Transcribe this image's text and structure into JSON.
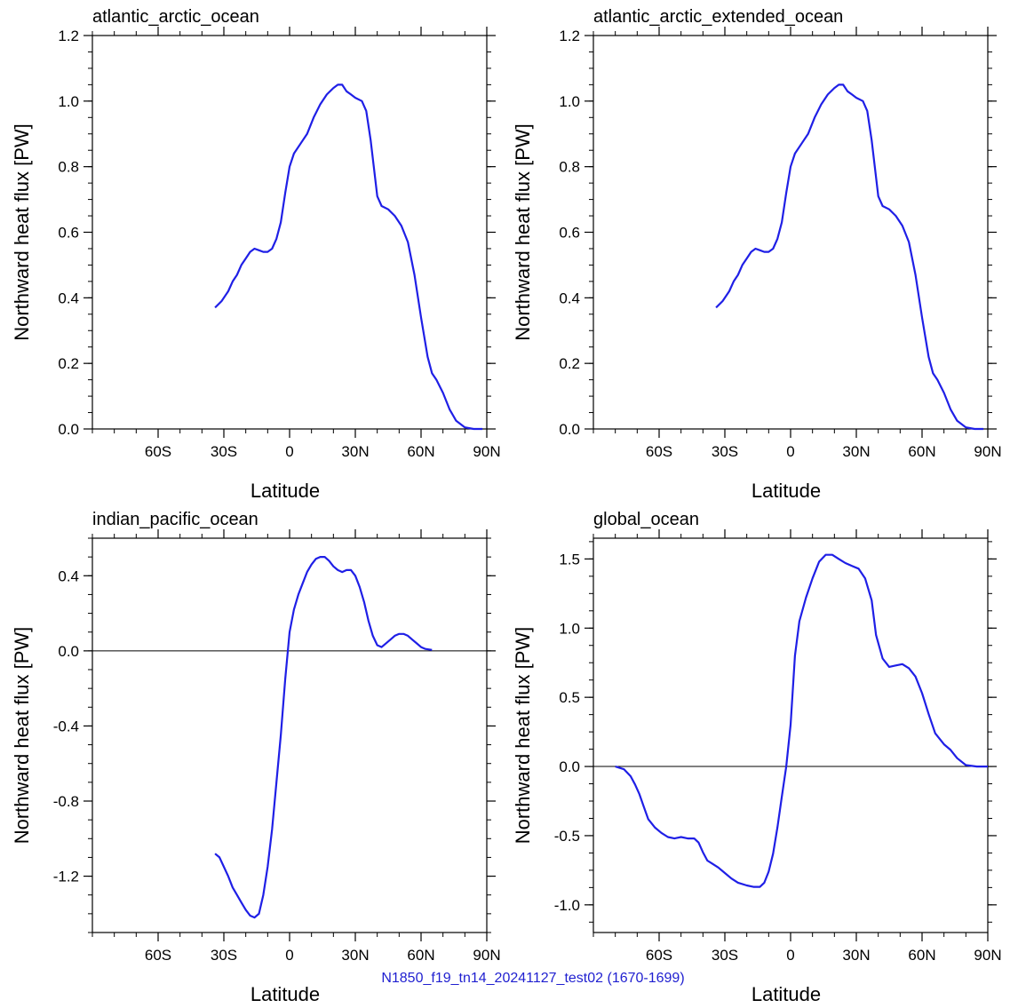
{
  "colors": {
    "series_line": "#1f1fe6",
    "zero_line": "#000000",
    "footer_text": "#1f1fd0",
    "background": "#ffffff"
  },
  "footer": {
    "label": "N1850_f19_tn14_20241127_test02 (1670-1699)"
  },
  "chart_data": [
    {
      "type": "line",
      "title": "atlantic_arctic_ocean",
      "xlabel": "Latitude",
      "ylabel": "Northward heat flux [PW]",
      "xlim": [
        -90,
        90
      ],
      "ylim": [
        0.0,
        1.2
      ],
      "x_ticks": [
        -60,
        -30,
        0,
        30,
        60,
        90
      ],
      "x_tick_labels": [
        "60S",
        "30S",
        "0",
        "30N",
        "60N",
        "90N"
      ],
      "y_ticks": [
        0.0,
        0.2,
        0.4,
        0.6,
        0.8,
        1.0,
        1.2
      ],
      "y_tick_labels": [
        "0.0",
        "0.2",
        "0.4",
        "0.6",
        "0.8",
        "1.0",
        "1.2"
      ],
      "zero_line": false,
      "series": [
        {
          "x": [
            -34,
            -31,
            -28,
            -26,
            -24,
            -22,
            -20,
            -18,
            -16,
            -14,
            -12,
            -10,
            -8,
            -6,
            -4,
            -2,
            0,
            2,
            5,
            8,
            11,
            14,
            17,
            20,
            22,
            24,
            26,
            28,
            30,
            33,
            35,
            37,
            40,
            42,
            45,
            48,
            51,
            54,
            57,
            60,
            63,
            65,
            67,
            70,
            73,
            76,
            80,
            84,
            88
          ],
          "y": [
            0.37,
            0.39,
            0.42,
            0.45,
            0.47,
            0.5,
            0.52,
            0.54,
            0.55,
            0.545,
            0.54,
            0.54,
            0.55,
            0.58,
            0.63,
            0.72,
            0.8,
            0.84,
            0.87,
            0.9,
            0.95,
            0.99,
            1.02,
            1.04,
            1.05,
            1.05,
            1.03,
            1.02,
            1.01,
            1.0,
            0.97,
            0.88,
            0.71,
            0.68,
            0.67,
            0.65,
            0.62,
            0.57,
            0.47,
            0.34,
            0.22,
            0.17,
            0.15,
            0.11,
            0.06,
            0.025,
            0.005,
            0.0,
            0.0
          ]
        }
      ]
    },
    {
      "type": "line",
      "title": "atlantic_arctic_extended_ocean",
      "xlabel": "Latitude",
      "ylabel": "Northward heat flux [PW]",
      "xlim": [
        -90,
        90
      ],
      "ylim": [
        0.0,
        1.2
      ],
      "x_ticks": [
        -60,
        -30,
        0,
        30,
        60,
        90
      ],
      "x_tick_labels": [
        "60S",
        "30S",
        "0",
        "30N",
        "60N",
        "90N"
      ],
      "y_ticks": [
        0.0,
        0.2,
        0.4,
        0.6,
        0.8,
        1.0,
        1.2
      ],
      "y_tick_labels": [
        "0.0",
        "0.2",
        "0.4",
        "0.6",
        "0.8",
        "1.0",
        "1.2"
      ],
      "zero_line": false,
      "series": [
        {
          "x": [
            -34,
            -31,
            -28,
            -26,
            -24,
            -22,
            -20,
            -18,
            -16,
            -14,
            -12,
            -10,
            -8,
            -6,
            -4,
            -2,
            0,
            2,
            5,
            8,
            11,
            14,
            17,
            20,
            22,
            24,
            26,
            28,
            30,
            33,
            35,
            37,
            40,
            42,
            45,
            48,
            51,
            54,
            57,
            60,
            63,
            65,
            67,
            70,
            73,
            76,
            80,
            84,
            88
          ],
          "y": [
            0.37,
            0.39,
            0.42,
            0.45,
            0.47,
            0.5,
            0.52,
            0.54,
            0.55,
            0.545,
            0.54,
            0.54,
            0.55,
            0.58,
            0.63,
            0.72,
            0.8,
            0.84,
            0.87,
            0.9,
            0.95,
            0.99,
            1.02,
            1.04,
            1.05,
            1.05,
            1.03,
            1.02,
            1.01,
            1.0,
            0.97,
            0.88,
            0.71,
            0.68,
            0.67,
            0.65,
            0.62,
            0.57,
            0.47,
            0.34,
            0.22,
            0.17,
            0.15,
            0.11,
            0.06,
            0.025,
            0.005,
            0.0,
            0.0
          ]
        }
      ]
    },
    {
      "type": "line",
      "title": "indian_pacific_ocean",
      "xlabel": "Latitude",
      "ylabel": "Northward heat flux [PW]",
      "xlim": [
        -90,
        90
      ],
      "ylim": [
        -1.5,
        0.6
      ],
      "x_ticks": [
        -60,
        -30,
        0,
        30,
        60,
        90
      ],
      "x_tick_labels": [
        "60S",
        "30S",
        "0",
        "30N",
        "60N",
        "90N"
      ],
      "y_ticks": [
        -1.2,
        -0.8,
        -0.4,
        0.0,
        0.4
      ],
      "y_tick_labels": [
        "-1.2",
        "-0.8",
        "-0.4",
        "0.0",
        "0.4"
      ],
      "zero_line": true,
      "series": [
        {
          "x": [
            -34,
            -32,
            -30,
            -28,
            -26,
            -24,
            -22,
            -20,
            -18,
            -16,
            -14,
            -12,
            -10,
            -8,
            -6,
            -4,
            -2,
            0,
            2,
            4,
            6,
            8,
            10,
            12,
            14,
            16,
            18,
            20,
            22,
            24,
            26,
            28,
            30,
            32,
            34,
            36,
            38,
            40,
            42,
            44,
            46,
            48,
            50,
            52,
            54,
            56,
            58,
            60,
            62,
            65
          ],
          "y": [
            -1.08,
            -1.1,
            -1.15,
            -1.2,
            -1.26,
            -1.3,
            -1.34,
            -1.38,
            -1.41,
            -1.42,
            -1.4,
            -1.3,
            -1.15,
            -0.95,
            -0.7,
            -0.45,
            -0.15,
            0.1,
            0.22,
            0.3,
            0.36,
            0.42,
            0.46,
            0.49,
            0.5,
            0.5,
            0.48,
            0.45,
            0.43,
            0.42,
            0.43,
            0.43,
            0.4,
            0.34,
            0.26,
            0.16,
            0.08,
            0.03,
            0.02,
            0.04,
            0.06,
            0.08,
            0.09,
            0.09,
            0.08,
            0.06,
            0.04,
            0.02,
            0.01,
            0.005
          ]
        }
      ]
    },
    {
      "type": "line",
      "title": "global_ocean",
      "xlabel": "Latitude",
      "ylabel": "Northward heat flux [PW]",
      "xlim": [
        -90,
        90
      ],
      "ylim": [
        -1.2,
        1.65
      ],
      "x_ticks": [
        -60,
        -30,
        0,
        30,
        60,
        90
      ],
      "x_tick_labels": [
        "60S",
        "30S",
        "0",
        "30N",
        "60N",
        "90N"
      ],
      "y_ticks": [
        -1.0,
        -0.5,
        0.0,
        0.5,
        1.0,
        1.5
      ],
      "y_tick_labels": [
        "-1.0",
        "-0.5",
        "0.0",
        "0.5",
        "1.0",
        "1.5"
      ],
      "zero_line": true,
      "series": [
        {
          "x": [
            -80,
            -76,
            -73,
            -71,
            -69,
            -67,
            -65,
            -62,
            -59,
            -56,
            -53,
            -50,
            -47,
            -44,
            -42,
            -40,
            -38,
            -36,
            -33,
            -30,
            -27,
            -24,
            -20,
            -17,
            -14,
            -12,
            -10,
            -8,
            -6,
            -4,
            -2,
            0,
            2,
            4,
            7,
            10,
            13,
            16,
            19,
            22,
            25,
            28,
            31,
            34,
            37,
            39,
            42,
            45,
            48,
            51,
            54,
            57,
            60,
            63,
            66,
            70,
            73,
            76,
            80,
            85,
            90
          ],
          "y": [
            0.0,
            -0.02,
            -0.07,
            -0.13,
            -0.2,
            -0.29,
            -0.38,
            -0.44,
            -0.48,
            -0.51,
            -0.52,
            -0.51,
            -0.52,
            -0.52,
            -0.55,
            -0.62,
            -0.68,
            -0.7,
            -0.73,
            -0.77,
            -0.81,
            -0.84,
            -0.86,
            -0.87,
            -0.87,
            -0.84,
            -0.76,
            -0.63,
            -0.44,
            -0.22,
            0.0,
            0.3,
            0.8,
            1.05,
            1.22,
            1.36,
            1.48,
            1.53,
            1.53,
            1.5,
            1.47,
            1.45,
            1.43,
            1.36,
            1.2,
            0.95,
            0.78,
            0.72,
            0.73,
            0.74,
            0.71,
            0.65,
            0.53,
            0.38,
            0.24,
            0.16,
            0.12,
            0.06,
            0.01,
            0.0,
            0.0
          ]
        }
      ]
    }
  ]
}
